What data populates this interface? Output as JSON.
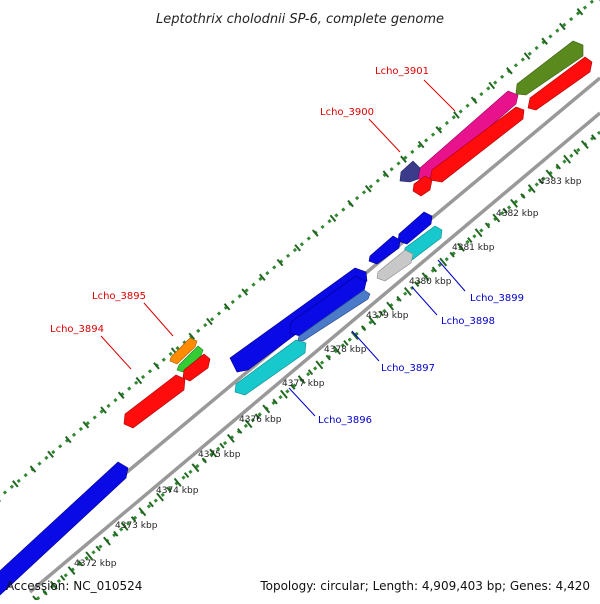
{
  "title": "Leptothrix cholodnii SP-6, complete genome",
  "footer": {
    "accession_label": "Accession:",
    "accession": "NC_010524",
    "topology_label": "Topology:",
    "topology": "circular",
    "length_label": "Length:",
    "length": "4,909,403 bp",
    "genes_label": "Genes:",
    "genes": "4,420"
  },
  "ticks": [
    "4372 kbp",
    "4373 kbp",
    "4374 kbp",
    "4375 kbp",
    "4376 kbp",
    "4377 kbp",
    "4378 kbp",
    "4379 kbp",
    "4380 kbp",
    "4381 kbp",
    "4382 kbp",
    "4383 kbp"
  ],
  "labeled_genes": [
    {
      "name": "Lcho_3894",
      "strand": "forward"
    },
    {
      "name": "Lcho_3895",
      "strand": "forward"
    },
    {
      "name": "Lcho_3900",
      "strand": "forward"
    },
    {
      "name": "Lcho_3901",
      "strand": "forward"
    },
    {
      "name": "Lcho_3896",
      "strand": "reverse"
    },
    {
      "name": "Lcho_3897",
      "strand": "reverse"
    },
    {
      "name": "Lcho_3898",
      "strand": "reverse"
    },
    {
      "name": "Lcho_3899",
      "strand": "reverse"
    }
  ],
  "colors": {
    "forward_label": "#dd0000",
    "reverse_label": "#0000cc",
    "backbone": "#999999",
    "gc_dots": "#338833",
    "ticks": "#226622"
  }
}
